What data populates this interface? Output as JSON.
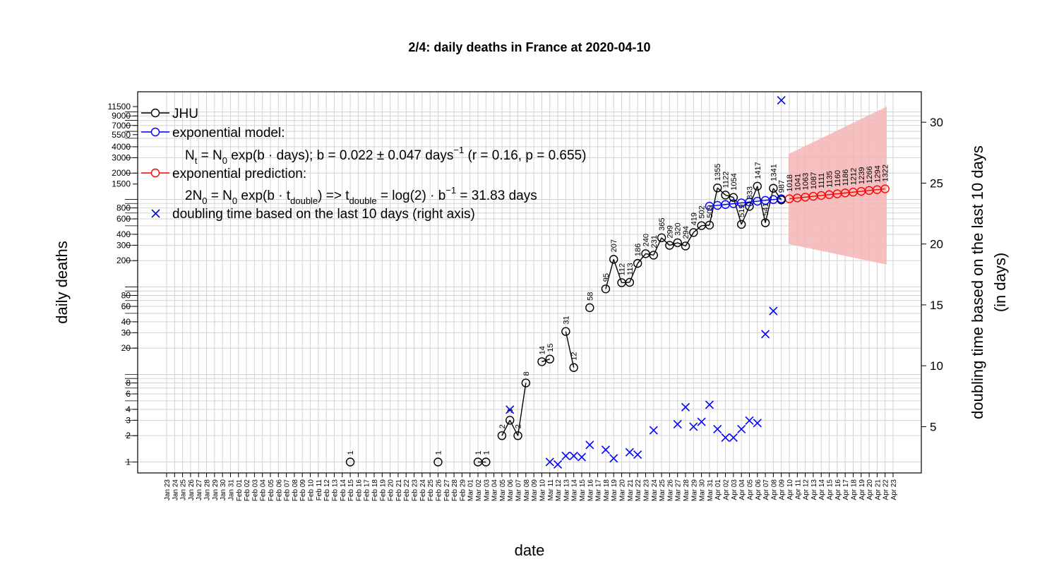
{
  "chart_data": {
    "type": "line",
    "title": "2/4: daily deaths in France at 2020-04-10",
    "xlabel": "date",
    "ylabel": "daily deaths",
    "y2label_line1": "doubling time based on the last 10 days",
    "y2label_line2": "(in days)",
    "yscale": "log",
    "ylim": [
      0.75,
      17000
    ],
    "y2lim": [
      1.2,
      32.5
    ],
    "grid": true,
    "legend_position": "top-left",
    "y_ticks": [
      "1",
      "2",
      "3",
      "4",
      "6",
      "8",
      "20",
      "30",
      "40",
      "60",
      "80",
      "200",
      "300",
      "400",
      "600",
      "800",
      "1500",
      "2000",
      "3000",
      "4000",
      "5500",
      "7000",
      "9000",
      "11500"
    ],
    "y2_ticks": [
      "5",
      "10",
      "15",
      "20",
      "25",
      "30"
    ],
    "x_labels": [
      "Jan 23",
      "Jan 24",
      "Jan 25",
      "Jan 26",
      "Jan 27",
      "Jan 28",
      "Jan 29",
      "Jan 30",
      "Jan 31",
      "Feb 01",
      "Feb 02",
      "Feb 03",
      "Feb 04",
      "Feb 05",
      "Feb 06",
      "Feb 07",
      "Feb 08",
      "Feb 09",
      "Feb 10",
      "Feb 11",
      "Feb 12",
      "Feb 13",
      "Feb 14",
      "Feb 15",
      "Feb 16",
      "Feb 17",
      "Feb 18",
      "Feb 19",
      "Feb 20",
      "Feb 21",
      "Feb 22",
      "Feb 23",
      "Feb 24",
      "Feb 25",
      "Feb 26",
      "Feb 27",
      "Feb 28",
      "Feb 29",
      "Mar 01",
      "Mar 02",
      "Mar 03",
      "Mar 04",
      "Mar 05",
      "Mar 06",
      "Mar 07",
      "Mar 08",
      "Mar 09",
      "Mar 10",
      "Mar 11",
      "Mar 12",
      "Mar 13",
      "Mar 14",
      "Mar 15",
      "Mar 16",
      "Mar 17",
      "Mar 18",
      "Mar 19",
      "Mar 20",
      "Mar 21",
      "Mar 22",
      "Mar 23",
      "Mar 24",
      "Mar 25",
      "Mar 26",
      "Mar 27",
      "Mar 28",
      "Mar 29",
      "Mar 30",
      "Mar 31",
      "Apr 01",
      "Apr 02",
      "Apr 03",
      "Apr 04",
      "Apr 05",
      "Apr 06",
      "Apr 07",
      "Apr 08",
      "Apr 09",
      "Apr 10",
      "Apr 11",
      "Apr 12",
      "Apr 13",
      "Apr 14",
      "Apr 15",
      "Apr 16",
      "Apr 17",
      "Apr 18",
      "Apr 19",
      "Apr 20",
      "Apr 21",
      "Apr 22",
      "Apr 23"
    ],
    "legend": {
      "jhu": "JHU",
      "exp_model": "exponential model:",
      "exp_prediction": "exponential prediction:",
      "doubling": "doubling time based on the last  10  days (right axis)"
    },
    "series": [
      {
        "name": "JHU",
        "color": "#000000",
        "points": [
          {
            "x": "Feb 15",
            "y": 1,
            "label": "1"
          },
          {
            "x": "Feb 26",
            "y": 1,
            "label": "1"
          },
          {
            "x": "Mar 02",
            "y": 1,
            "label": "1"
          },
          {
            "x": "Mar 03",
            "y": 1,
            "label": "1"
          },
          {
            "x": "Mar 05",
            "y": 2,
            "label": "2"
          },
          {
            "x": "Mar 06",
            "y": 3,
            "label": "3"
          },
          {
            "x": "Mar 07",
            "y": 2,
            "label": "2"
          },
          {
            "x": "Mar 08",
            "y": 8,
            "label": "8"
          },
          {
            "x": "Mar 10",
            "y": 14,
            "label": "14"
          },
          {
            "x": "Mar 11",
            "y": 15,
            "label": "15"
          },
          {
            "x": "Mar 13",
            "y": 31,
            "label": "31"
          },
          {
            "x": "Mar 14",
            "y": 12,
            "label": "12"
          },
          {
            "x": "Mar 16",
            "y": 58,
            "label": "58"
          },
          {
            "x": "Mar 18",
            "y": 95,
            "label": "95"
          },
          {
            "x": "Mar 19",
            "y": 207,
            "label": "207"
          },
          {
            "x": "Mar 20",
            "y": 112,
            "label": "112"
          },
          {
            "x": "Mar 21",
            "y": 113,
            "label": "113"
          },
          {
            "x": "Mar 22",
            "y": 186,
            "label": "186"
          },
          {
            "x": "Mar 23",
            "y": 240,
            "label": "240"
          },
          {
            "x": "Mar 24",
            "y": 231,
            "label": "231"
          },
          {
            "x": "Mar 25",
            "y": 365,
            "label": "365"
          },
          {
            "x": "Mar 26",
            "y": 299,
            "label": "299"
          },
          {
            "x": "Mar 27",
            "y": 320,
            "label": "320"
          },
          {
            "x": "Mar 28",
            "y": 294,
            "label": "294"
          },
          {
            "x": "Mar 29",
            "y": 419,
            "label": "419"
          },
          {
            "x": "Mar 30",
            "y": 502,
            "label": "502"
          },
          {
            "x": "Mar 31",
            "y": 509,
            "label": "509"
          },
          {
            "x": "Apr 01",
            "y": 1355,
            "label": "1355"
          },
          {
            "x": "Apr 02",
            "y": 1122,
            "label": "1122"
          },
          {
            "x": "Apr 03",
            "y": 1054,
            "label": "1054"
          },
          {
            "x": "Apr 04",
            "y": 519,
            "label": "519"
          },
          {
            "x": "Apr 05",
            "y": 833,
            "label": "833"
          },
          {
            "x": "Apr 06",
            "y": 1417,
            "label": "1417"
          },
          {
            "x": "Apr 07",
            "y": 541,
            "label": "541"
          },
          {
            "x": "Apr 08",
            "y": 1341,
            "label": "1341"
          },
          {
            "x": "Apr 09",
            "y": 987,
            "label": "987"
          }
        ]
      },
      {
        "name": "exponential model",
        "color": "#0000ff",
        "points": [
          {
            "x": "Mar 31",
            "y": 838
          },
          {
            "x": "Apr 01",
            "y": 856
          },
          {
            "x": "Apr 02",
            "y": 875
          },
          {
            "x": "Apr 03",
            "y": 895
          },
          {
            "x": "Apr 04",
            "y": 914
          },
          {
            "x": "Apr 05",
            "y": 935
          },
          {
            "x": "Apr 06",
            "y": 955
          },
          {
            "x": "Apr 07",
            "y": 976
          },
          {
            "x": "Apr 08",
            "y": 997
          },
          {
            "x": "Apr 09",
            "y": 1018
          }
        ]
      },
      {
        "name": "exponential prediction",
        "color": "#ff0000",
        "points": [
          {
            "x": "Apr 10",
            "y": 1018,
            "label": "1018"
          },
          {
            "x": "Apr 11",
            "y": 1041,
            "label": "1041"
          },
          {
            "x": "Apr 12",
            "y": 1063,
            "label": "1063"
          },
          {
            "x": "Apr 13",
            "y": 1087,
            "label": "1087"
          },
          {
            "x": "Apr 14",
            "y": 1111,
            "label": "1111"
          },
          {
            "x": "Apr 15",
            "y": 1135,
            "label": "1135"
          },
          {
            "x": "Apr 16",
            "y": 1160,
            "label": "1160"
          },
          {
            "x": "Apr 17",
            "y": 1186,
            "label": "1186"
          },
          {
            "x": "Apr 18",
            "y": 1212,
            "label": "1212"
          },
          {
            "x": "Apr 19",
            "y": 1239,
            "label": "1239"
          },
          {
            "x": "Apr 20",
            "y": 1266,
            "label": "1266"
          },
          {
            "x": "Apr 21",
            "y": 1294,
            "label": "1294"
          },
          {
            "x": "Apr 22",
            "y": 1322,
            "label": "1322"
          }
        ],
        "band": {
          "color": "#f5b5b5",
          "points": [
            {
              "x": "Apr 10",
              "lower": 310,
              "upper": 3300
            },
            {
              "x": "Apr 22",
              "lower": 180,
              "upper": 11500
            }
          ]
        }
      },
      {
        "name": "doubling time",
        "axis": "right",
        "color": "#0000ff",
        "marker": "x",
        "points": [
          {
            "x": "Mar 06",
            "y": 6.4
          },
          {
            "x": "Mar 11",
            "y": 2.1
          },
          {
            "x": "Mar 12",
            "y": 1.9
          },
          {
            "x": "Mar 13",
            "y": 2.6
          },
          {
            "x": "Mar 14",
            "y": 2.6
          },
          {
            "x": "Mar 15",
            "y": 2.5
          },
          {
            "x": "Mar 16",
            "y": 3.5
          },
          {
            "x": "Mar 18",
            "y": 3.1
          },
          {
            "x": "Mar 19",
            "y": 2.4
          },
          {
            "x": "Mar 21",
            "y": 2.9
          },
          {
            "x": "Mar 22",
            "y": 2.7
          },
          {
            "x": "Mar 24",
            "y": 4.7
          },
          {
            "x": "Mar 27",
            "y": 5.2
          },
          {
            "x": "Mar 28",
            "y": 6.6
          },
          {
            "x": "Mar 29",
            "y": 5.0
          },
          {
            "x": "Mar 30",
            "y": 5.4
          },
          {
            "x": "Mar 31",
            "y": 6.8
          },
          {
            "x": "Apr 01",
            "y": 4.8
          },
          {
            "x": "Apr 02",
            "y": 4.1
          },
          {
            "x": "Apr 03",
            "y": 4.1
          },
          {
            "x": "Apr 04",
            "y": 4.8
          },
          {
            "x": "Apr 05",
            "y": 5.5
          },
          {
            "x": "Apr 06",
            "y": 5.3
          },
          {
            "x": "Apr 07",
            "y": 12.6
          },
          {
            "x": "Apr 08",
            "y": 14.5
          },
          {
            "x": "Apr 09",
            "y": 31.8
          }
        ]
      }
    ]
  }
}
